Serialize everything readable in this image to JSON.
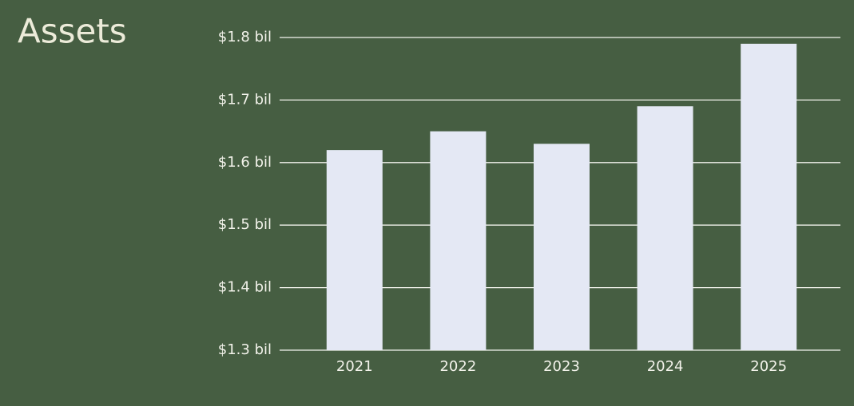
{
  "chart_data": {
    "type": "bar",
    "title": "Assets",
    "categories": [
      "2021",
      "2022",
      "2023",
      "2024",
      "2025"
    ],
    "values": [
      1.62,
      1.65,
      1.63,
      1.69,
      1.79
    ],
    "color": "#e4e8f4",
    "ylim": [
      1.3,
      1.8
    ],
    "yticks": [
      {
        "value": 1.3,
        "label": "$1.3 bil"
      },
      {
        "value": 1.4,
        "label": "$1.4 bil"
      },
      {
        "value": 1.5,
        "label": "$1.5 bil"
      },
      {
        "value": 1.6,
        "label": "$1.6 bil"
      },
      {
        "value": 1.7,
        "label": "$1.7 bil"
      },
      {
        "value": 1.8,
        "label": "$1.8 bil"
      }
    ],
    "grid": true
  }
}
